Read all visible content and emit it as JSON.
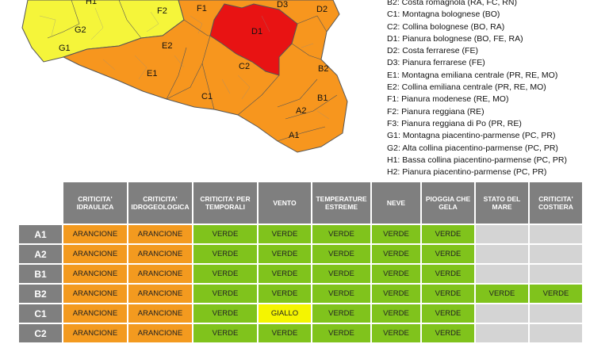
{
  "colors": {
    "arancione": "#f39a1f",
    "verde": "#80c31c",
    "giallo": "#f5f500",
    "rosso": "#e81313",
    "grigio": "#d4d4d4",
    "header_bg": "#7f7f7f",
    "map_yellow": "#f5f53a",
    "map_orange": "#f7961e"
  },
  "map": {
    "labels": [
      "H1",
      "F2",
      "F1",
      "D3",
      "D2",
      "G2",
      "G1",
      "D1",
      "E2",
      "C2",
      "E1",
      "B2",
      "C1",
      "B1",
      "A2",
      "A1"
    ]
  },
  "legend": [
    "B2: Costa romagnola (RA, FC, RN)",
    "C1: Montagna bolognese (BO)",
    "C2: Collina bolognese (BO, RA)",
    "D1: Pianura bolognese (BO, FE, RA)",
    "D2: Costa ferrarese (FE)",
    "D3: Pianura ferrarese (FE)",
    "E1: Montagna emiliana centrale (PR, RE, MO)",
    "E2: Collina emiliana centrale (PR, RE, MO)",
    "F1: Pianura modenese (RE, MO)",
    "F2: Pianura reggiana (RE)",
    "F3: Pianura reggiana di Po (PR, RE)",
    "G1: Montagna piacentino-parmense (PC, PR)",
    "G2: Alta collina piacentino-parmense (PC, PR)",
    "H1: Bassa collina piacentino-parmense (PC, PR)",
    "H2: Pianura piacentino-parmense (PC, PR)"
  ],
  "table": {
    "headers": [
      [
        "CRITICITA'",
        "IDRAULICA"
      ],
      [
        "CRITICITA'",
        "IDROGEOLOGICA"
      ],
      [
        "CRITICITA' PER",
        "TEMPORALI"
      ],
      [
        "VENTO"
      ],
      [
        "TEMPERATURE",
        "ESTREME"
      ],
      [
        "NEVE"
      ],
      [
        "PIOGGIA CHE",
        "GELA"
      ],
      [
        "STATO DEL",
        "MARE"
      ],
      [
        "CRITICITA'",
        "COSTIERA"
      ]
    ],
    "rows": [
      {
        "zone": "A1",
        "cells": [
          {
            "t": "ARANCIONE",
            "c": "arancione"
          },
          {
            "t": "ARANCIONE",
            "c": "arancione"
          },
          {
            "t": "VERDE",
            "c": "verde"
          },
          {
            "t": "VERDE",
            "c": "verde"
          },
          {
            "t": "VERDE",
            "c": "verde"
          },
          {
            "t": "VERDE",
            "c": "verde"
          },
          {
            "t": "VERDE",
            "c": "verde"
          },
          {
            "t": "",
            "c": "grigio"
          },
          {
            "t": "",
            "c": "grigio"
          }
        ]
      },
      {
        "zone": "A2",
        "cells": [
          {
            "t": "ARANCIONE",
            "c": "arancione"
          },
          {
            "t": "ARANCIONE",
            "c": "arancione"
          },
          {
            "t": "VERDE",
            "c": "verde"
          },
          {
            "t": "VERDE",
            "c": "verde"
          },
          {
            "t": "VERDE",
            "c": "verde"
          },
          {
            "t": "VERDE",
            "c": "verde"
          },
          {
            "t": "VERDE",
            "c": "verde"
          },
          {
            "t": "",
            "c": "grigio"
          },
          {
            "t": "",
            "c": "grigio"
          }
        ]
      },
      {
        "zone": "B1",
        "cells": [
          {
            "t": "ARANCIONE",
            "c": "arancione"
          },
          {
            "t": "ARANCIONE",
            "c": "arancione"
          },
          {
            "t": "VERDE",
            "c": "verde"
          },
          {
            "t": "VERDE",
            "c": "verde"
          },
          {
            "t": "VERDE",
            "c": "verde"
          },
          {
            "t": "VERDE",
            "c": "verde"
          },
          {
            "t": "VERDE",
            "c": "verde"
          },
          {
            "t": "",
            "c": "grigio"
          },
          {
            "t": "",
            "c": "grigio"
          }
        ]
      },
      {
        "zone": "B2",
        "cells": [
          {
            "t": "ARANCIONE",
            "c": "arancione"
          },
          {
            "t": "ARANCIONE",
            "c": "arancione"
          },
          {
            "t": "VERDE",
            "c": "verde"
          },
          {
            "t": "VERDE",
            "c": "verde"
          },
          {
            "t": "VERDE",
            "c": "verde"
          },
          {
            "t": "VERDE",
            "c": "verde"
          },
          {
            "t": "VERDE",
            "c": "verde"
          },
          {
            "t": "VERDE",
            "c": "verde"
          },
          {
            "t": "VERDE",
            "c": "verde"
          }
        ]
      },
      {
        "zone": "C1",
        "cells": [
          {
            "t": "ARANCIONE",
            "c": "arancione"
          },
          {
            "t": "ARANCIONE",
            "c": "arancione"
          },
          {
            "t": "VERDE",
            "c": "verde"
          },
          {
            "t": "GIALLO",
            "c": "giallo"
          },
          {
            "t": "VERDE",
            "c": "verde"
          },
          {
            "t": "VERDE",
            "c": "verde"
          },
          {
            "t": "VERDE",
            "c": "verde"
          },
          {
            "t": "",
            "c": "grigio"
          },
          {
            "t": "",
            "c": "grigio"
          }
        ]
      },
      {
        "zone": "C2",
        "cells": [
          {
            "t": "ARANCIONE",
            "c": "arancione"
          },
          {
            "t": "ARANCIONE",
            "c": "arancione"
          },
          {
            "t": "VERDE",
            "c": "verde"
          },
          {
            "t": "VERDE",
            "c": "verde"
          },
          {
            "t": "VERDE",
            "c": "verde"
          },
          {
            "t": "VERDE",
            "c": "verde"
          },
          {
            "t": "VERDE",
            "c": "verde"
          },
          {
            "t": "",
            "c": "grigio"
          },
          {
            "t": "",
            "c": "grigio"
          }
        ]
      }
    ]
  }
}
